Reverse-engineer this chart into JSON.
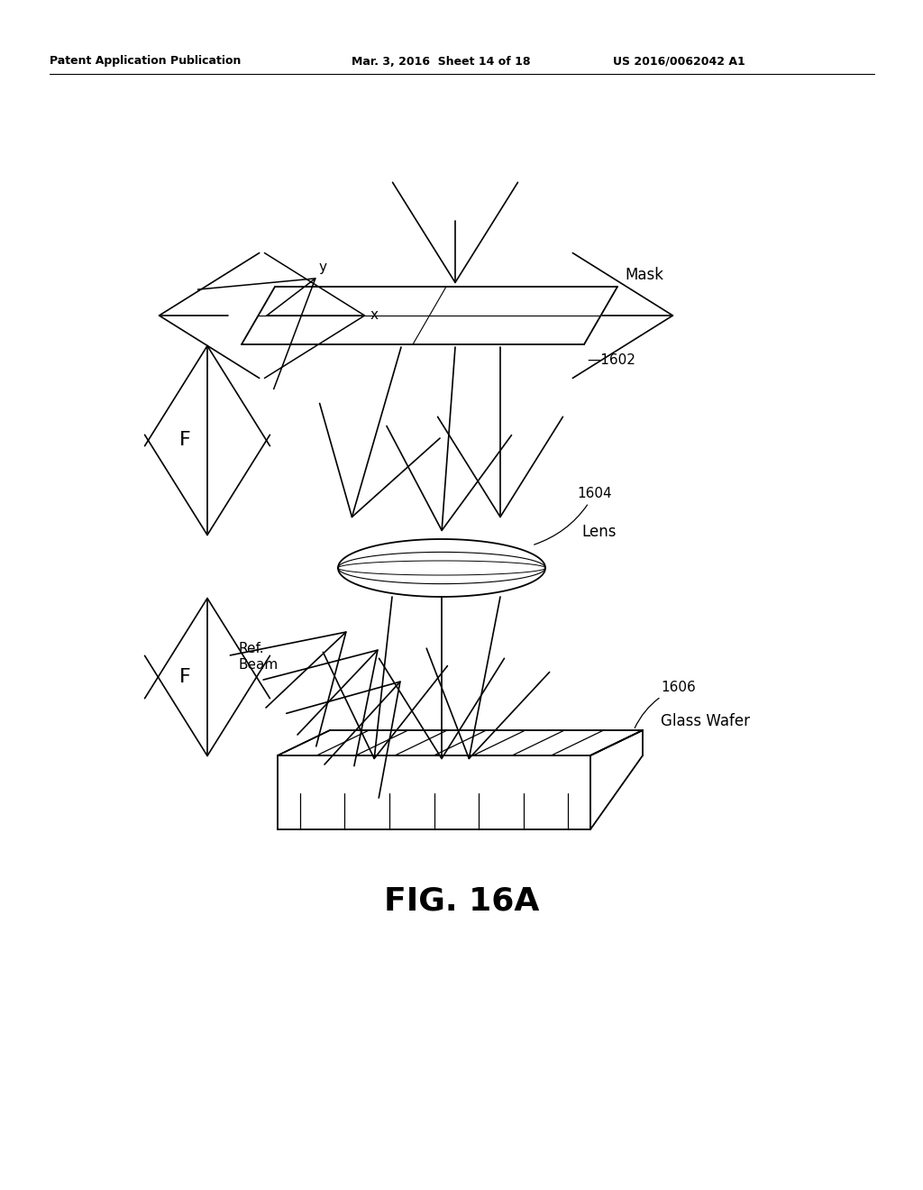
{
  "background_color": "#ffffff",
  "header_left": "Patent Application Publication",
  "header_mid": "Mar. 3, 2016  Sheet 14 of 18",
  "header_right": "US 2016/0062042 A1",
  "caption": "FIG. 16A",
  "label_1602": "1602",
  "label_1604": "1604",
  "label_1606": "1606",
  "label_mask": "Mask",
  "label_lens": "Lens",
  "label_glass_wafer": "Glass Wafer",
  "label_ref_beam_1": "Ref.",
  "label_ref_beam_2": "Beam",
  "label_x": "x",
  "label_y": "y",
  "label_F1": "F",
  "label_F2": "F"
}
